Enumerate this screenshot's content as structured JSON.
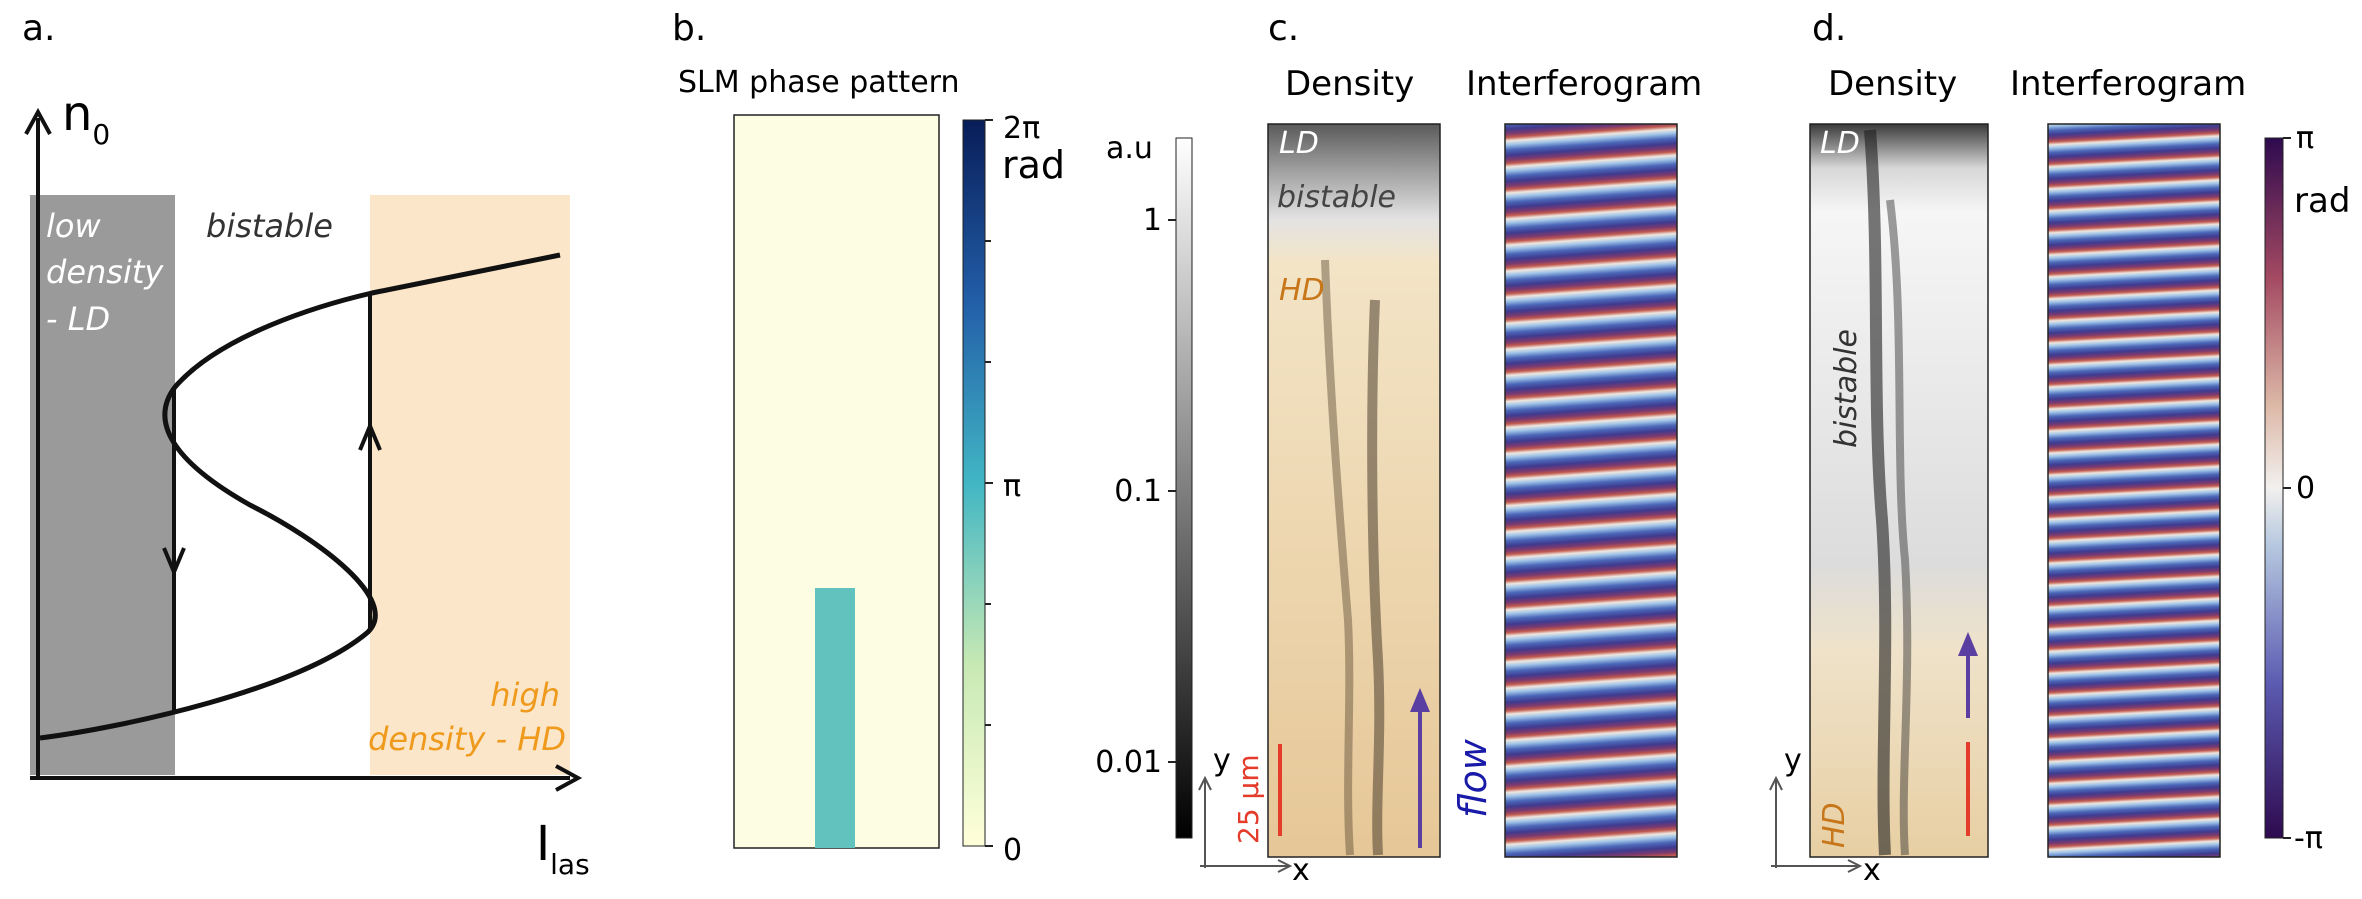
{
  "panels": {
    "a": {
      "label": "a.",
      "y_axis": "n",
      "y_axis_sub": "0",
      "x_axis": "I",
      "x_axis_sub": "las",
      "region_low": [
        "low",
        "density",
        "- LD"
      ],
      "region_bistable": "bistable",
      "region_high": [
        "high",
        "density - HD"
      ],
      "colors": {
        "low": "#9a9a9a",
        "bistable": "#ffffff",
        "high": "#fbe6c9",
        "high_text": "#ef9a1c"
      }
    },
    "b": {
      "label": "b.",
      "title": "SLM phase pattern",
      "colorbar_top": "2π",
      "colorbar_unit": "rad",
      "colorbar_mid": "π",
      "colorbar_bottom": "0",
      "colors": {
        "background": "#fdfde3",
        "stripe": "#62c2bd"
      }
    },
    "c": {
      "label": "c.",
      "density_title": "Density",
      "interferogram_title": "Interferogram",
      "colorbar_unit": "a.u",
      "colorbar_ticks": [
        "1",
        "0.1",
        "0.01"
      ],
      "region_ld": "LD",
      "region_bistable": "bistable",
      "region_hd": "HD",
      "flow_label": "flow",
      "scale_bar": "25 µm",
      "axis_y": "y",
      "axis_x": "x",
      "colors": {
        "hd_text": "#c7761a",
        "scale": "#e53b2b",
        "arrow": "#5b3ea1",
        "flow_text": "#1a1aa8"
      }
    },
    "d": {
      "label": "d.",
      "density_title": "Density",
      "interferogram_title": "Interferogram",
      "region_ld": "LD",
      "region_bistable": "bistable",
      "region_hd": "HD",
      "axis_y": "y",
      "axis_x": "x",
      "colorbar_top": "π",
      "colorbar_unit": "rad",
      "colorbar_mid": "0",
      "colorbar_bottom": "-π",
      "colors": {
        "hd_text": "#c7761a",
        "scale": "#e53b2b",
        "arrow": "#5b3ea1"
      }
    }
  }
}
